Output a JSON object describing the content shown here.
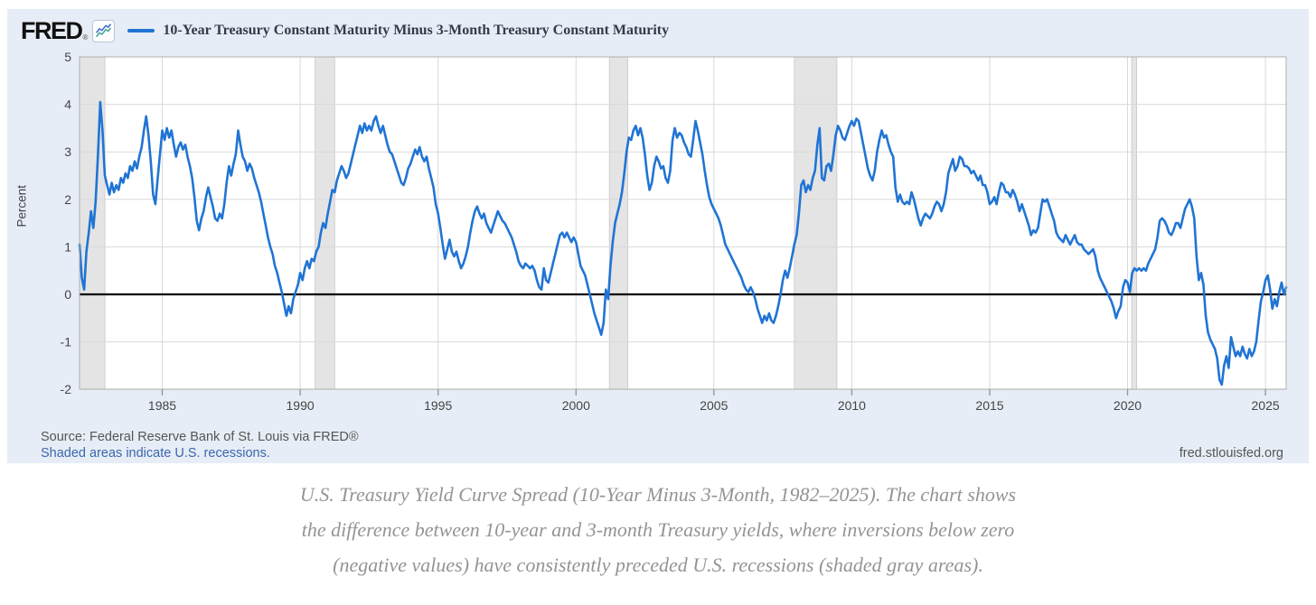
{
  "header": {
    "logo_text": "FRED",
    "logo_registered": "®",
    "legend_label": "10-Year Treasury Constant Maturity Minus 3-Month Treasury Constant Maturity"
  },
  "footer": {
    "source_line": "Source: Federal Reserve Bank of St. Louis via FRED®",
    "recession_note": "Shaded areas indicate U.S. recessions.",
    "site_link": "fred.stlouisfed.org"
  },
  "caption": {
    "line1": "U.S. Treasury Yield Curve Spread (10-Year Minus 3-Month, 1982–2025). The chart shows",
    "line2": "the difference between 10-year and 3-month Treasury yields, where inversions below zero",
    "line3": "(negative values) have consistently preceded U.S. recessions (shaded gray areas)."
  },
  "colors": {
    "card_bg": "#e7edf6",
    "plot_bg": "#ffffff",
    "series_blue": "#2074d4",
    "grid": "#d9d9d9",
    "plot_border": "#b0b0b0",
    "recession_fill": "#e4e4e4",
    "recession_edge": "#c9c9c9",
    "zero_line": "#000000",
    "tick_text": "#444444",
    "icon_blue": "#3c6fd1",
    "icon_teal": "#45a39a"
  },
  "chart_data": {
    "type": "line",
    "title": "10-Year Treasury Constant Maturity Minus 3-Month Treasury Constant Maturity",
    "xlabel": "",
    "ylabel": "Percent",
    "ylim": [
      -2,
      5
    ],
    "y_ticks": [
      5,
      4,
      3,
      2,
      1,
      0,
      -1,
      -2
    ],
    "x_ticks": [
      1985,
      1990,
      1995,
      2000,
      2005,
      2010,
      2015,
      2020,
      2025
    ],
    "x_range": [
      1982.0,
      2025.75
    ],
    "grid": true,
    "zero_line": true,
    "legend_position": "top",
    "recessions": [
      [
        1982.0,
        1982.92
      ],
      [
        1990.54,
        1991.25
      ],
      [
        2001.21,
        2001.88
      ],
      [
        2007.92,
        2009.46
      ],
      [
        2020.15,
        2020.33
      ]
    ],
    "series": [
      {
        "name": "10-Year Treasury Constant Maturity Minus 3-Month Treasury Constant Maturity",
        "color": "#2074d4",
        "start_year": 1982,
        "points_per_year": 12,
        "values": [
          1.05,
          0.35,
          0.1,
          0.9,
          1.3,
          1.75,
          1.4,
          1.95,
          2.9,
          4.05,
          3.45,
          2.5,
          2.3,
          2.1,
          2.35,
          2.15,
          2.3,
          2.2,
          2.45,
          2.35,
          2.55,
          2.45,
          2.7,
          2.6,
          2.8,
          2.65,
          2.9,
          3.1,
          3.45,
          3.75,
          3.35,
          2.8,
          2.1,
          1.9,
          2.45,
          2.95,
          3.45,
          3.25,
          3.5,
          3.3,
          3.45,
          3.15,
          2.9,
          3.1,
          3.2,
          3.05,
          3.15,
          2.9,
          2.7,
          2.45,
          2.05,
          1.55,
          1.35,
          1.6,
          1.75,
          2.05,
          2.25,
          2.05,
          1.85,
          1.6,
          1.55,
          1.7,
          1.6,
          1.9,
          2.35,
          2.7,
          2.5,
          2.75,
          2.95,
          3.45,
          3.15,
          2.9,
          2.8,
          2.6,
          2.75,
          2.65,
          2.45,
          2.3,
          2.15,
          1.95,
          1.7,
          1.45,
          1.2,
          1.0,
          0.85,
          0.6,
          0.45,
          0.25,
          0.05,
          -0.2,
          -0.45,
          -0.25,
          -0.4,
          -0.1,
          0.05,
          0.2,
          0.45,
          0.3,
          0.55,
          0.7,
          0.55,
          0.75,
          0.7,
          0.9,
          1.0,
          1.3,
          1.5,
          1.4,
          1.7,
          1.95,
          2.2,
          2.15,
          2.4,
          2.55,
          2.7,
          2.6,
          2.45,
          2.55,
          2.75,
          2.95,
          3.15,
          3.35,
          3.55,
          3.4,
          3.6,
          3.45,
          3.55,
          3.45,
          3.65,
          3.75,
          3.55,
          3.4,
          3.55,
          3.35,
          3.15,
          3.0,
          2.95,
          2.8,
          2.65,
          2.5,
          2.35,
          2.3,
          2.45,
          2.65,
          2.75,
          2.9,
          3.05,
          2.95,
          3.1,
          2.9,
          2.8,
          2.9,
          2.65,
          2.45,
          2.25,
          1.9,
          1.7,
          1.4,
          1.05,
          0.75,
          0.95,
          1.15,
          0.9,
          0.8,
          0.9,
          0.7,
          0.55,
          0.65,
          0.8,
          1.0,
          1.3,
          1.55,
          1.75,
          1.85,
          1.7,
          1.6,
          1.7,
          1.5,
          1.4,
          1.3,
          1.45,
          1.6,
          1.75,
          1.65,
          1.55,
          1.5,
          1.4,
          1.3,
          1.2,
          1.05,
          0.9,
          0.7,
          0.6,
          0.55,
          0.65,
          0.6,
          0.55,
          0.6,
          0.5,
          0.3,
          0.15,
          0.1,
          0.55,
          0.3,
          0.25,
          0.45,
          0.65,
          0.85,
          1.05,
          1.25,
          1.3,
          1.2,
          1.3,
          1.2,
          1.1,
          1.2,
          1.1,
          0.85,
          0.6,
          0.5,
          0.4,
          0.2,
          0.0,
          -0.2,
          -0.4,
          -0.55,
          -0.7,
          -0.85,
          -0.6,
          0.1,
          -0.1,
          0.6,
          1.1,
          1.5,
          1.7,
          1.9,
          2.15,
          2.55,
          3.0,
          3.3,
          3.25,
          3.45,
          3.55,
          3.35,
          3.5,
          3.3,
          2.95,
          2.5,
          2.2,
          2.35,
          2.7,
          2.9,
          2.8,
          2.65,
          2.7,
          2.45,
          2.35,
          2.6,
          3.25,
          3.5,
          3.3,
          3.4,
          3.35,
          3.2,
          3.1,
          2.95,
          2.9,
          3.25,
          3.65,
          3.45,
          3.2,
          2.95,
          2.6,
          2.3,
          2.05,
          1.9,
          1.8,
          1.7,
          1.6,
          1.45,
          1.25,
          1.05,
          0.95,
          0.85,
          0.75,
          0.65,
          0.55,
          0.45,
          0.35,
          0.2,
          0.1,
          0.05,
          0.15,
          0.05,
          -0.1,
          -0.3,
          -0.45,
          -0.6,
          -0.45,
          -0.55,
          -0.4,
          -0.55,
          -0.6,
          -0.45,
          -0.25,
          0.0,
          0.3,
          0.5,
          0.35,
          0.55,
          0.8,
          1.05,
          1.25,
          1.7,
          2.3,
          2.4,
          2.15,
          2.3,
          2.2,
          2.45,
          2.6,
          3.15,
          3.5,
          2.45,
          2.4,
          2.7,
          2.75,
          2.6,
          2.95,
          3.35,
          3.55,
          3.45,
          3.3,
          3.25,
          3.4,
          3.55,
          3.65,
          3.55,
          3.7,
          3.65,
          3.4,
          3.15,
          2.9,
          2.65,
          2.5,
          2.4,
          2.6,
          3.0,
          3.25,
          3.45,
          3.3,
          3.35,
          3.15,
          3.0,
          2.9,
          2.25,
          1.95,
          2.1,
          1.95,
          1.9,
          1.95,
          1.9,
          2.15,
          2.0,
          1.8,
          1.6,
          1.45,
          1.6,
          1.7,
          1.65,
          1.6,
          1.7,
          1.85,
          1.95,
          1.9,
          1.75,
          1.9,
          2.15,
          2.55,
          2.7,
          2.85,
          2.6,
          2.7,
          2.9,
          2.85,
          2.7,
          2.7,
          2.65,
          2.55,
          2.6,
          2.5,
          2.4,
          2.5,
          2.3,
          2.3,
          2.15,
          1.9,
          1.95,
          2.05,
          1.9,
          2.15,
          2.35,
          2.3,
          2.15,
          2.15,
          2.05,
          2.2,
          2.1,
          1.95,
          1.75,
          1.9,
          1.75,
          1.6,
          1.45,
          1.25,
          1.35,
          1.3,
          1.4,
          1.7,
          2.0,
          1.95,
          2.0,
          1.85,
          1.7,
          1.55,
          1.3,
          1.2,
          1.15,
          1.1,
          1.25,
          1.15,
          1.05,
          1.15,
          1.25,
          1.1,
          1.05,
          1.05,
          0.95,
          0.9,
          0.85,
          0.9,
          0.95,
          0.8,
          0.5,
          0.35,
          0.25,
          0.15,
          0.05,
          -0.05,
          -0.15,
          -0.3,
          -0.5,
          -0.35,
          -0.25,
          0.15,
          0.3,
          0.25,
          0.05,
          0.45,
          0.55,
          0.5,
          0.55,
          0.5,
          0.55,
          0.5,
          0.65,
          0.75,
          0.85,
          0.95,
          1.2,
          1.55,
          1.6,
          1.55,
          1.45,
          1.3,
          1.25,
          1.35,
          1.5,
          1.5,
          1.4,
          1.6,
          1.8,
          1.9,
          2.0,
          1.85,
          1.6,
          0.8,
          0.3,
          0.45,
          0.2,
          -0.45,
          -0.8,
          -0.95,
          -1.05,
          -1.15,
          -1.35,
          -1.8,
          -1.9,
          -1.5,
          -1.3,
          -1.55,
          -0.9,
          -1.1,
          -1.3,
          -1.2,
          -1.3,
          -1.1,
          -1.25,
          -1.35,
          -1.15,
          -1.3,
          -1.2,
          -1.0,
          -0.55,
          -0.15,
          0.05,
          0.3,
          0.4,
          0.1,
          -0.3,
          -0.1,
          -0.25,
          0.05,
          0.25,
          0.0,
          0.15
        ]
      }
    ]
  }
}
